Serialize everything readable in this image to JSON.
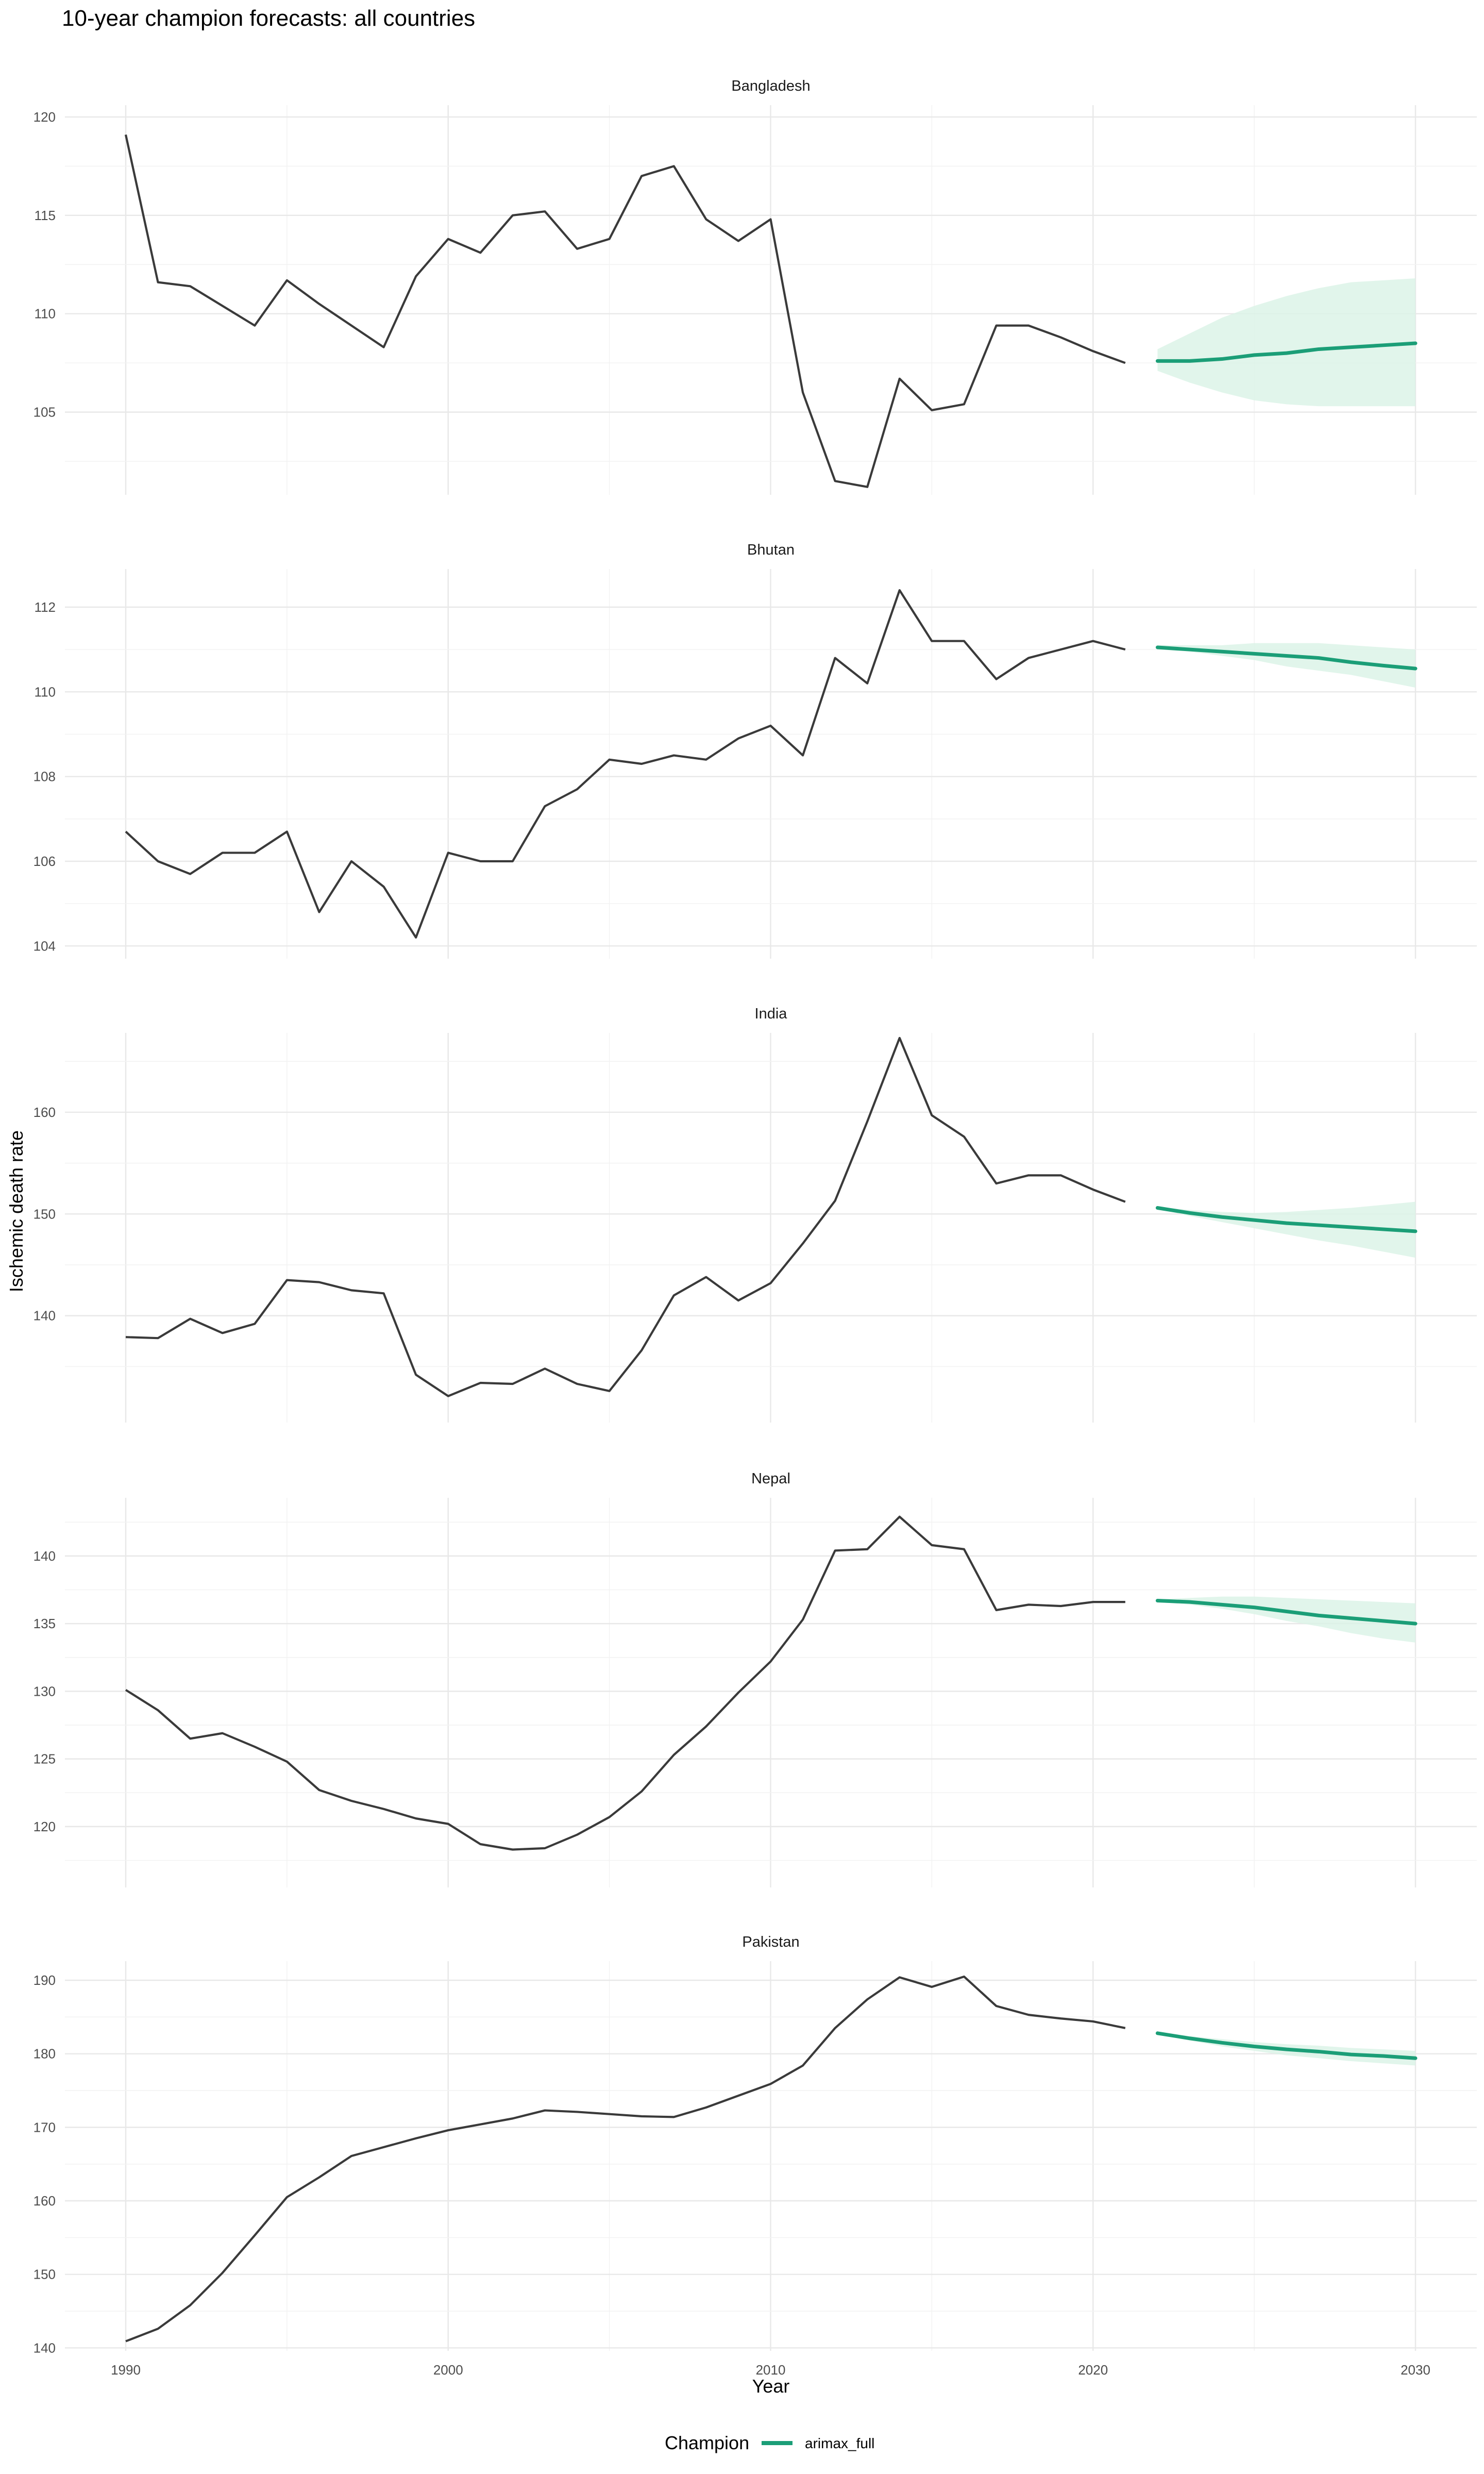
{
  "chart_data": {
    "type": "line",
    "title": "10-year champion forecasts: all countries",
    "xlabel": "Year",
    "ylabel": "Ischemic death rate",
    "xlim": [
      1990,
      2030
    ],
    "x_ticks": [
      1990,
      2000,
      2010,
      2020,
      2030
    ],
    "grid": true,
    "legend": {
      "title": "Champion",
      "position": "bottom",
      "entries": [
        {
          "label": "arimax_full",
          "color": "#1b9e77"
        }
      ]
    },
    "colors": {
      "history": "#3a3a3a",
      "forecast": "#1b9e77",
      "band": "#d9f2e6"
    },
    "history_years": [
      1990,
      1991,
      1992,
      1993,
      1994,
      1995,
      1996,
      1997,
      1998,
      1999,
      2000,
      2001,
      2002,
      2003,
      2004,
      2005,
      2006,
      2007,
      2008,
      2009,
      2010,
      2011,
      2012,
      2013,
      2014,
      2015,
      2016,
      2017,
      2018,
      2019,
      2020,
      2021
    ],
    "forecast_years": [
      2022,
      2023,
      2024,
      2025,
      2026,
      2027,
      2028,
      2029,
      2030
    ],
    "panels": [
      {
        "name": "Bangladesh",
        "ylim": [
          100.8,
          120.6
        ],
        "y_ticks": [
          105,
          110,
          115,
          120
        ],
        "history": [
          119.1,
          111.6,
          111.4,
          110.4,
          109.4,
          111.7,
          110.5,
          109.4,
          108.3,
          111.9,
          113.8,
          113.1,
          115.0,
          115.2,
          113.3,
          113.8,
          117.0,
          117.5,
          114.8,
          113.7,
          114.8,
          106.0,
          101.5,
          101.2,
          106.7,
          105.1,
          105.4,
          109.4,
          109.4,
          108.8,
          108.1,
          107.5
        ],
        "forecast": [
          107.6,
          107.6,
          107.7,
          107.9,
          108.0,
          108.2,
          108.3,
          108.4,
          108.5
        ],
        "lower": [
          107.1,
          106.5,
          106.0,
          105.6,
          105.4,
          105.3,
          105.3,
          105.3,
          105.3
        ],
        "upper": [
          108.2,
          109.0,
          109.8,
          110.4,
          110.9,
          111.3,
          111.6,
          111.7,
          111.8
        ]
      },
      {
        "name": "Bhutan",
        "ylim": [
          103.7,
          112.9
        ],
        "y_ticks": [
          104,
          106,
          108,
          110,
          112
        ],
        "history": [
          106.7,
          106.0,
          105.7,
          106.2,
          106.2,
          106.7,
          104.8,
          106.0,
          105.4,
          104.2,
          106.2,
          106.0,
          106.0,
          107.3,
          107.7,
          108.4,
          108.3,
          108.5,
          108.4,
          108.9,
          109.2,
          108.5,
          110.8,
          110.2,
          112.4,
          111.2,
          111.2,
          110.3,
          110.8,
          111.0,
          111.2,
          111.0
        ],
        "forecast": [
          111.05,
          111.0,
          110.95,
          110.9,
          110.85,
          110.8,
          110.7,
          110.62,
          110.55
        ],
        "lower": [
          111.0,
          110.95,
          110.85,
          110.75,
          110.6,
          110.5,
          110.4,
          110.25,
          110.1
        ],
        "upper": [
          111.1,
          111.1,
          111.1,
          111.15,
          111.15,
          111.15,
          111.1,
          111.05,
          111.0
        ]
      },
      {
        "name": "India",
        "ylim": [
          129.5,
          167.8
        ],
        "y_ticks": [
          140,
          150,
          160
        ],
        "history": [
          137.9,
          137.8,
          139.7,
          138.3,
          139.2,
          143.5,
          143.3,
          142.5,
          142.2,
          134.2,
          132.1,
          133.4,
          133.3,
          134.8,
          133.3,
          132.6,
          136.6,
          142.0,
          143.8,
          141.5,
          143.2,
          147.1,
          151.3,
          159.1,
          167.3,
          159.7,
          157.6,
          153.0,
          153.8,
          153.8,
          152.4,
          151.2
        ],
        "forecast": [
          150.6,
          150.1,
          149.7,
          149.4,
          149.1,
          148.9,
          148.7,
          148.5,
          148.3
        ],
        "lower": [
          150.5,
          149.8,
          149.2,
          148.6,
          148.0,
          147.4,
          146.9,
          146.3,
          145.7
        ],
        "upper": [
          150.7,
          150.4,
          150.2,
          150.1,
          150.2,
          150.4,
          150.6,
          150.9,
          151.2
        ]
      },
      {
        "name": "Nepal",
        "ylim": [
          115.5,
          144.3
        ],
        "y_ticks": [
          120,
          125,
          130,
          135,
          140
        ],
        "history": [
          130.1,
          128.6,
          126.5,
          126.9,
          125.9,
          124.8,
          122.7,
          121.9,
          121.3,
          120.6,
          120.2,
          118.7,
          118.3,
          118.4,
          119.4,
          120.7,
          122.6,
          125.3,
          127.4,
          129.9,
          132.2,
          135.3,
          140.4,
          140.5,
          142.9,
          140.8,
          140.5,
          136.0,
          136.4,
          136.3,
          136.6,
          136.6
        ],
        "forecast": [
          136.7,
          136.6,
          136.4,
          136.2,
          135.9,
          135.6,
          135.4,
          135.2,
          135.0
        ],
        "lower": [
          136.6,
          136.4,
          136.1,
          135.7,
          135.2,
          134.8,
          134.3,
          133.9,
          133.6
        ],
        "upper": [
          136.8,
          136.9,
          137.0,
          137.0,
          136.9,
          136.8,
          136.7,
          136.6,
          136.5
        ]
      },
      {
        "name": "Pakistan",
        "ylim": [
          139.6,
          192.6
        ],
        "y_ticks": [
          140,
          150,
          160,
          170,
          180,
          190
        ],
        "history": [
          140.9,
          142.6,
          145.8,
          150.2,
          155.3,
          160.5,
          163.2,
          166.1,
          167.3,
          168.5,
          169.6,
          170.4,
          171.2,
          172.3,
          172.1,
          171.8,
          171.5,
          171.4,
          172.7,
          174.3,
          175.9,
          178.4,
          183.5,
          187.4,
          190.4,
          189.1,
          190.5,
          186.5,
          185.3,
          184.8,
          184.4,
          183.5
        ],
        "forecast": [
          182.8,
          182.1,
          181.5,
          181.0,
          180.6,
          180.3,
          179.9,
          179.7,
          179.4
        ],
        "lower": [
          182.6,
          181.8,
          181.0,
          180.4,
          179.8,
          179.4,
          179.0,
          178.7,
          178.4
        ],
        "upper": [
          183.0,
          182.4,
          182.0,
          181.6,
          181.3,
          181.1,
          180.8,
          180.6,
          180.4
        ]
      }
    ]
  }
}
